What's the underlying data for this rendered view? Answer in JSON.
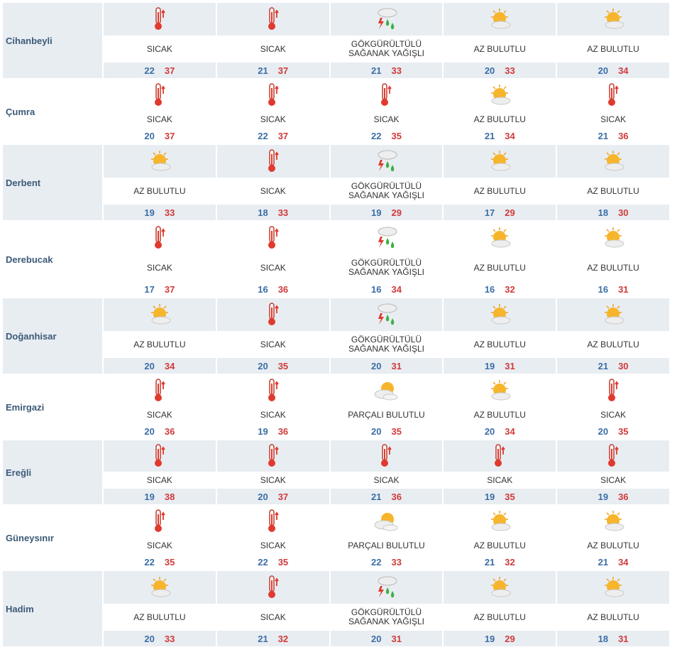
{
  "rows": [
    {
      "city": "Cihanbeyli",
      "style": "shaded",
      "size": "large",
      "days": [
        {
          "icon": "thermometer-hot-icon",
          "desc": "SICAK",
          "low": "22",
          "high": "37"
        },
        {
          "icon": "thermometer-hot-icon",
          "desc": "SICAK",
          "low": "21",
          "high": "37"
        },
        {
          "icon": "thunder-shower-icon",
          "desc": "GÖKGÜRÜLTÜLÜ SAĞANAK YAĞIŞLI",
          "low": "21",
          "high": "33"
        },
        {
          "icon": "sun-cloud-icon",
          "desc": "AZ BULUTLU",
          "low": "20",
          "high": "33"
        },
        {
          "icon": "sun-cloud-icon",
          "desc": "AZ BULUTLU",
          "low": "20",
          "high": "34"
        }
      ]
    },
    {
      "city": "Çumra",
      "style": "plain",
      "size": "small",
      "days": [
        {
          "icon": "thermometer-hot-icon",
          "desc": "SICAK",
          "low": "20",
          "high": "37"
        },
        {
          "icon": "thermometer-hot-icon",
          "desc": "SICAK",
          "low": "22",
          "high": "37"
        },
        {
          "icon": "thermometer-hot-icon",
          "desc": "SICAK",
          "low": "22",
          "high": "35"
        },
        {
          "icon": "sun-cloud-icon",
          "desc": "AZ BULUTLU",
          "low": "21",
          "high": "34"
        },
        {
          "icon": "thermometer-hot-icon",
          "desc": "SICAK",
          "low": "21",
          "high": "36"
        }
      ]
    },
    {
      "city": "Derbent",
      "style": "shaded",
      "size": "large",
      "days": [
        {
          "icon": "sun-cloud-icon",
          "desc": "AZ BULUTLU",
          "low": "19",
          "high": "33"
        },
        {
          "icon": "thermometer-hot-icon",
          "desc": "SICAK",
          "low": "18",
          "high": "33"
        },
        {
          "icon": "thunder-shower-icon",
          "desc": "GÖKGÜRÜLTÜLÜ SAĞANAK YAĞIŞLI",
          "low": "19",
          "high": "29"
        },
        {
          "icon": "sun-cloud-icon",
          "desc": "AZ BULUTLU",
          "low": "17",
          "high": "29"
        },
        {
          "icon": "sun-cloud-icon",
          "desc": "AZ BULUTLU",
          "low": "18",
          "high": "30"
        }
      ]
    },
    {
      "city": "Derebucak",
      "style": "plain",
      "size": "large",
      "days": [
        {
          "icon": "thermometer-hot-icon",
          "desc": "SICAK",
          "low": "17",
          "high": "37"
        },
        {
          "icon": "thermometer-hot-icon",
          "desc": "SICAK",
          "low": "16",
          "high": "36"
        },
        {
          "icon": "thunder-shower-icon",
          "desc": "GÖKGÜRÜLTÜLÜ SAĞANAK YAĞIŞLI",
          "low": "16",
          "high": "34"
        },
        {
          "icon": "sun-cloud-icon",
          "desc": "AZ BULUTLU",
          "low": "16",
          "high": "32"
        },
        {
          "icon": "sun-cloud-icon",
          "desc": "AZ BULUTLU",
          "low": "16",
          "high": "31"
        }
      ]
    },
    {
      "city": "Doğanhisar",
      "style": "shaded",
      "size": "large",
      "days": [
        {
          "icon": "sun-cloud-icon",
          "desc": "AZ BULUTLU",
          "low": "20",
          "high": "34"
        },
        {
          "icon": "thermometer-hot-icon",
          "desc": "SICAK",
          "low": "20",
          "high": "35"
        },
        {
          "icon": "thunder-shower-icon",
          "desc": "GÖKGÜRÜLTÜLÜ SAĞANAK YAĞIŞLI",
          "low": "20",
          "high": "31"
        },
        {
          "icon": "sun-cloud-icon",
          "desc": "AZ BULUTLU",
          "low": "19",
          "high": "31"
        },
        {
          "icon": "sun-cloud-icon",
          "desc": "AZ BULUTLU",
          "low": "21",
          "high": "30"
        }
      ]
    },
    {
      "city": "Emirgazi",
      "style": "plain",
      "size": "small",
      "days": [
        {
          "icon": "thermometer-hot-icon",
          "desc": "SICAK",
          "low": "20",
          "high": "36"
        },
        {
          "icon": "thermometer-hot-icon",
          "desc": "SICAK",
          "low": "19",
          "high": "36"
        },
        {
          "icon": "partly-cloudy-icon",
          "desc": "PARÇALI BULUTLU",
          "low": "20",
          "high": "35"
        },
        {
          "icon": "sun-cloud-icon",
          "desc": "AZ BULUTLU",
          "low": "20",
          "high": "34"
        },
        {
          "icon": "thermometer-hot-icon",
          "desc": "SICAK",
          "low": "20",
          "high": "35"
        }
      ]
    },
    {
      "city": "Ereğli",
      "style": "shaded",
      "size": "small",
      "days": [
        {
          "icon": "thermometer-hot-icon",
          "desc": "SICAK",
          "low": "19",
          "high": "38"
        },
        {
          "icon": "thermometer-hot-icon",
          "desc": "SICAK",
          "low": "20",
          "high": "37"
        },
        {
          "icon": "thermometer-hot-icon",
          "desc": "SICAK",
          "low": "21",
          "high": "36"
        },
        {
          "icon": "thermometer-hot-icon",
          "desc": "SICAK",
          "low": "19",
          "high": "35"
        },
        {
          "icon": "thermometer-hot-icon",
          "desc": "SICAK",
          "low": "19",
          "high": "36"
        }
      ]
    },
    {
      "city": "Güneysınır",
      "style": "plain",
      "size": "small",
      "days": [
        {
          "icon": "thermometer-hot-icon",
          "desc": "SICAK",
          "low": "22",
          "high": "35"
        },
        {
          "icon": "thermometer-hot-icon",
          "desc": "SICAK",
          "low": "22",
          "high": "35"
        },
        {
          "icon": "partly-cloudy-icon",
          "desc": "PARÇALI BULUTLU",
          "low": "22",
          "high": "33"
        },
        {
          "icon": "sun-cloud-icon",
          "desc": "AZ BULUTLU",
          "low": "21",
          "high": "32"
        },
        {
          "icon": "sun-cloud-icon",
          "desc": "AZ BULUTLU",
          "low": "21",
          "high": "34"
        }
      ]
    },
    {
      "city": "Hadim",
      "style": "shaded",
      "size": "large",
      "days": [
        {
          "icon": "sun-cloud-icon",
          "desc": "AZ BULUTLU",
          "low": "20",
          "high": "33"
        },
        {
          "icon": "thermometer-hot-icon",
          "desc": "SICAK",
          "low": "21",
          "high": "32"
        },
        {
          "icon": "thunder-shower-icon",
          "desc": "GÖKGÜRÜLTÜLÜ SAĞANAK YAĞIŞLI",
          "low": "20",
          "high": "31"
        },
        {
          "icon": "sun-cloud-icon",
          "desc": "AZ BULUTLU",
          "low": "19",
          "high": "29"
        },
        {
          "icon": "sun-cloud-icon",
          "desc": "AZ BULUTLU",
          "low": "18",
          "high": "31"
        }
      ]
    }
  ],
  "colors": {
    "low": "#3a6ea5",
    "high": "#d03a3a",
    "shade": "#e8edf2",
    "city": "#3c5a78"
  }
}
